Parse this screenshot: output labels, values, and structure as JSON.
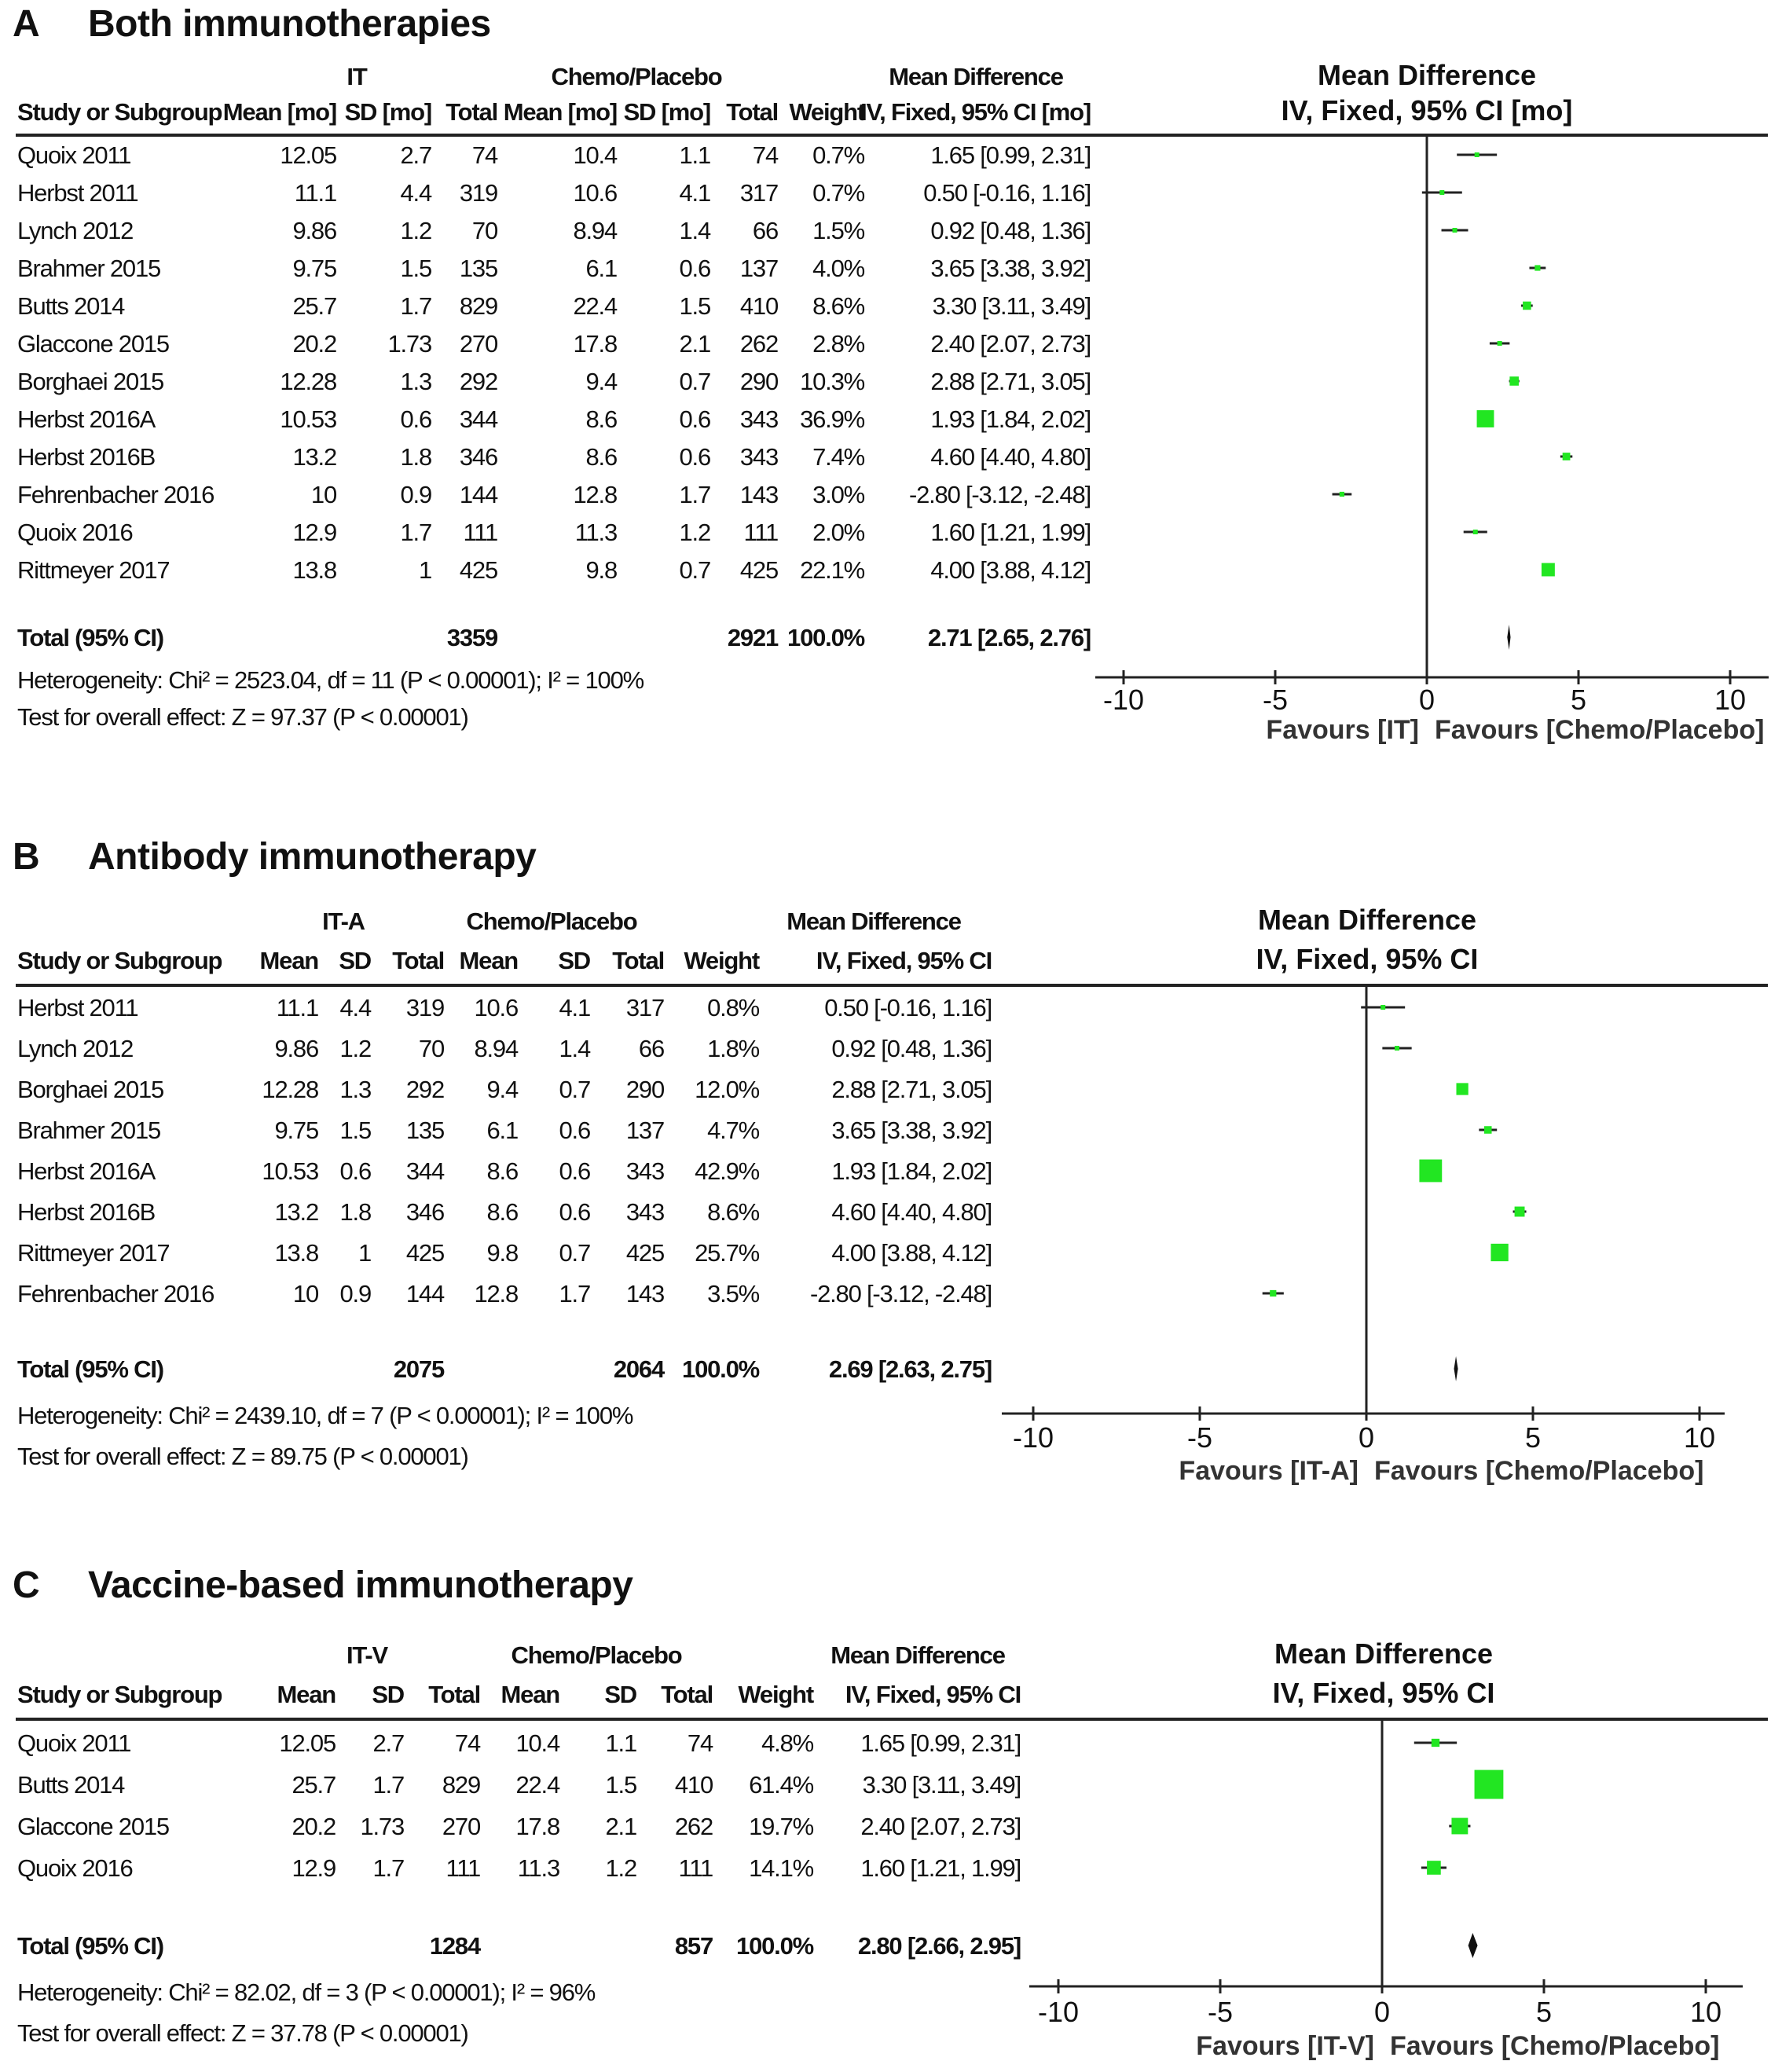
{
  "chart_data": [
    {
      "type": "forest",
      "letter": "A",
      "title": "Both immunotherapies",
      "group1": "IT",
      "group2": "Chemo/Placebo",
      "md_group": "Mean Difference",
      "columns": [
        "Study or Subgroup",
        "Mean [mo]",
        "SD [mo]",
        "Total",
        "Mean [mo]",
        "SD [mo]",
        "Total",
        "Weight",
        "IV, Fixed, 95% CI [mo]"
      ],
      "plot_header": [
        "Mean Difference",
        "IV, Fixed, 95% CI [mo]"
      ],
      "rows": [
        {
          "study": "Quoix 2011",
          "m1": "12.05",
          "sd1": "2.7",
          "n1": "74",
          "m2": "10.4",
          "sd2": "1.1",
          "n2": "74",
          "weight": "0.7%",
          "ci": "1.65 [0.99, 2.31]",
          "md": 1.65,
          "lo": 0.99,
          "hi": 2.31,
          "w": 0.7
        },
        {
          "study": "Herbst 2011",
          "m1": "11.1",
          "sd1": "4.4",
          "n1": "319",
          "m2": "10.6",
          "sd2": "4.1",
          "n2": "317",
          "weight": "0.7%",
          "ci": "0.50 [-0.16, 1.16]",
          "md": 0.5,
          "lo": -0.16,
          "hi": 1.16,
          "w": 0.7
        },
        {
          "study": "Lynch 2012",
          "m1": "9.86",
          "sd1": "1.2",
          "n1": "70",
          "m2": "8.94",
          "sd2": "1.4",
          "n2": "66",
          "weight": "1.5%",
          "ci": "0.92 [0.48, 1.36]",
          "md": 0.92,
          "lo": 0.48,
          "hi": 1.36,
          "w": 1.5
        },
        {
          "study": "Brahmer 2015",
          "m1": "9.75",
          "sd1": "1.5",
          "n1": "135",
          "m2": "6.1",
          "sd2": "0.6",
          "n2": "137",
          "weight": "4.0%",
          "ci": "3.65 [3.38, 3.92]",
          "md": 3.65,
          "lo": 3.38,
          "hi": 3.92,
          "w": 4.0
        },
        {
          "study": "Butts  2014",
          "m1": "25.7",
          "sd1": "1.7",
          "n1": "829",
          "m2": "22.4",
          "sd2": "1.5",
          "n2": "410",
          "weight": "8.6%",
          "ci": "3.30 [3.11, 3.49]",
          "md": 3.3,
          "lo": 3.11,
          "hi": 3.49,
          "w": 8.6
        },
        {
          "study": "Glaccone 2015",
          "m1": "20.2",
          "sd1": "1.73",
          "n1": "270",
          "m2": "17.8",
          "sd2": "2.1",
          "n2": "262",
          "weight": "2.8%",
          "ci": "2.40 [2.07, 2.73]",
          "md": 2.4,
          "lo": 2.07,
          "hi": 2.73,
          "w": 2.8
        },
        {
          "study": "Borghaei 2015",
          "m1": "12.28",
          "sd1": "1.3",
          "n1": "292",
          "m2": "9.4",
          "sd2": "0.7",
          "n2": "290",
          "weight": "10.3%",
          "ci": "2.88 [2.71, 3.05]",
          "md": 2.88,
          "lo": 2.71,
          "hi": 3.05,
          "w": 10.3
        },
        {
          "study": "Herbst 2016A",
          "m1": "10.53",
          "sd1": "0.6",
          "n1": "344",
          "m2": "8.6",
          "sd2": "0.6",
          "n2": "343",
          "weight": "36.9%",
          "ci": "1.93 [1.84, 2.02]",
          "md": 1.93,
          "lo": 1.84,
          "hi": 2.02,
          "w": 36.9
        },
        {
          "study": "Herbst 2016B",
          "m1": "13.2",
          "sd1": "1.8",
          "n1": "346",
          "m2": "8.6",
          "sd2": "0.6",
          "n2": "343",
          "weight": "7.4%",
          "ci": "4.60 [4.40, 4.80]",
          "md": 4.6,
          "lo": 4.4,
          "hi": 4.8,
          "w": 7.4
        },
        {
          "study": "Fehrenbacher 2016",
          "m1": "10",
          "sd1": "0.9",
          "n1": "144",
          "m2": "12.8",
          "sd2": "1.7",
          "n2": "143",
          "weight": "3.0%",
          "ci": "-2.80 [-3.12, -2.48]",
          "md": -2.8,
          "lo": -3.12,
          "hi": -2.48,
          "w": 3.0
        },
        {
          "study": "Quoix 2016",
          "m1": "12.9",
          "sd1": "1.7",
          "n1": "111",
          "m2": "11.3",
          "sd2": "1.2",
          "n2": "111",
          "weight": "2.0%",
          "ci": "1.60 [1.21, 1.99]",
          "md": 1.6,
          "lo": 1.21,
          "hi": 1.99,
          "w": 2.0
        },
        {
          "study": "Rittmeyer  2017",
          "m1": "13.8",
          "sd1": "1",
          "n1": "425",
          "m2": "9.8",
          "sd2": "0.7",
          "n2": "425",
          "weight": "22.1%",
          "ci": "4.00 [3.88, 4.12]",
          "md": 4.0,
          "lo": 3.88,
          "hi": 4.12,
          "w": 22.1
        }
      ],
      "total": {
        "label": "Total (95% CI)",
        "n1": "3359",
        "n2": "2921",
        "weight": "100.0%",
        "ci": "2.71 [2.65, 2.76]",
        "md": 2.71,
        "lo": 2.65,
        "hi": 2.76
      },
      "heterogeneity": "Heterogeneity: Chi² = 2523.04, df = 11 (P < 0.00001); I² = 100%",
      "overall": "Test for overall effect: Z = 97.37 (P < 0.00001)",
      "xticks": [
        -10,
        -5,
        0,
        5,
        10
      ],
      "xlim": [
        -10,
        10
      ],
      "favours_left": "Favours [IT]",
      "favours_right": "Favours [Chemo/Placebo]"
    },
    {
      "type": "forest",
      "letter": "B",
      "title": "Antibody immunotherapy",
      "group1": "IT-A",
      "group2": "Chemo/Placebo",
      "md_group": "Mean Difference",
      "columns": [
        "Study or Subgroup",
        "Mean",
        "SD",
        "Total",
        "Mean",
        "SD",
        "Total",
        "Weight",
        "IV, Fixed, 95% CI"
      ],
      "plot_header": [
        "Mean Difference",
        "IV, Fixed, 95% CI"
      ],
      "rows": [
        {
          "study": "Herbst 2011",
          "m1": "11.1",
          "sd1": "4.4",
          "n1": "319",
          "m2": "10.6",
          "sd2": "4.1",
          "n2": "317",
          "weight": "0.8%",
          "ci": "0.50 [-0.16, 1.16]",
          "md": 0.5,
          "lo": -0.16,
          "hi": 1.16,
          "w": 0.8
        },
        {
          "study": "Lynch 2012",
          "m1": "9.86",
          "sd1": "1.2",
          "n1": "70",
          "m2": "8.94",
          "sd2": "1.4",
          "n2": "66",
          "weight": "1.8%",
          "ci": "0.92 [0.48, 1.36]",
          "md": 0.92,
          "lo": 0.48,
          "hi": 1.36,
          "w": 1.8
        },
        {
          "study": "Borghaei 2015",
          "m1": "12.28",
          "sd1": "1.3",
          "n1": "292",
          "m2": "9.4",
          "sd2": "0.7",
          "n2": "290",
          "weight": "12.0%",
          "ci": "2.88 [2.71, 3.05]",
          "md": 2.88,
          "lo": 2.71,
          "hi": 3.05,
          "w": 12.0
        },
        {
          "study": "Brahmer 2015",
          "m1": "9.75",
          "sd1": "1.5",
          "n1": "135",
          "m2": "6.1",
          "sd2": "0.6",
          "n2": "137",
          "weight": "4.7%",
          "ci": "3.65 [3.38, 3.92]",
          "md": 3.65,
          "lo": 3.38,
          "hi": 3.92,
          "w": 4.7
        },
        {
          "study": "Herbst 2016A",
          "m1": "10.53",
          "sd1": "0.6",
          "n1": "344",
          "m2": "8.6",
          "sd2": "0.6",
          "n2": "343",
          "weight": "42.9%",
          "ci": "1.93 [1.84, 2.02]",
          "md": 1.93,
          "lo": 1.84,
          "hi": 2.02,
          "w": 42.9
        },
        {
          "study": "Herbst 2016B",
          "m1": "13.2",
          "sd1": "1.8",
          "n1": "346",
          "m2": "8.6",
          "sd2": "0.6",
          "n2": "343",
          "weight": "8.6%",
          "ci": "4.60 [4.40, 4.80]",
          "md": 4.6,
          "lo": 4.4,
          "hi": 4.8,
          "w": 8.6
        },
        {
          "study": "Rittmeyer  2017",
          "m1": "13.8",
          "sd1": "1",
          "n1": "425",
          "m2": "9.8",
          "sd2": "0.7",
          "n2": "425",
          "weight": "25.7%",
          "ci": "4.00 [3.88, 4.12]",
          "md": 4.0,
          "lo": 3.88,
          "hi": 4.12,
          "w": 25.7
        },
        {
          "study": "Fehrenbacher 2016",
          "m1": "10",
          "sd1": "0.9",
          "n1": "144",
          "m2": "12.8",
          "sd2": "1.7",
          "n2": "143",
          "weight": "3.5%",
          "ci": "-2.80 [-3.12, -2.48]",
          "md": -2.8,
          "lo": -3.12,
          "hi": -2.48,
          "w": 3.5
        }
      ],
      "total": {
        "label": "Total (95% CI)",
        "n1": "2075",
        "n2": "2064",
        "weight": "100.0%",
        "ci": "2.69 [2.63, 2.75]",
        "md": 2.69,
        "lo": 2.63,
        "hi": 2.75
      },
      "heterogeneity": "Heterogeneity: Chi² = 2439.10, df = 7 (P < 0.00001); I² = 100%",
      "overall": "Test for overall effect: Z = 89.75 (P < 0.00001)",
      "xticks": [
        -10,
        -5,
        0,
        5,
        10
      ],
      "xlim": [
        -10,
        10
      ],
      "favours_left": "Favours [IT-A]",
      "favours_right": "Favours [Chemo/Placebo]"
    },
    {
      "type": "forest",
      "letter": "C",
      "title": "Vaccine-based immunotherapy",
      "group1": "IT-V",
      "group2": "Chemo/Placebo",
      "md_group": "Mean Difference",
      "columns": [
        "Study or Subgroup",
        "Mean",
        "SD",
        "Total",
        "Mean",
        "SD",
        "Total",
        "Weight",
        "IV, Fixed, 95% CI"
      ],
      "plot_header": [
        "Mean Difference",
        "IV, Fixed, 95% CI"
      ],
      "rows": [
        {
          "study": "Quoix 2011",
          "m1": "12.05",
          "sd1": "2.7",
          "n1": "74",
          "m2": "10.4",
          "sd2": "1.1",
          "n2": "74",
          "weight": "4.8%",
          "ci": "1.65 [0.99, 2.31]",
          "md": 1.65,
          "lo": 0.99,
          "hi": 2.31,
          "w": 4.8
        },
        {
          "study": "Butts  2014",
          "m1": "25.7",
          "sd1": "1.7",
          "n1": "829",
          "m2": "22.4",
          "sd2": "1.5",
          "n2": "410",
          "weight": "61.4%",
          "ci": "3.30 [3.11, 3.49]",
          "md": 3.3,
          "lo": 3.11,
          "hi": 3.49,
          "w": 61.4
        },
        {
          "study": "Glaccone 2015",
          "m1": "20.2",
          "sd1": "1.73",
          "n1": "270",
          "m2": "17.8",
          "sd2": "2.1",
          "n2": "262",
          "weight": "19.7%",
          "ci": "2.40 [2.07, 2.73]",
          "md": 2.4,
          "lo": 2.07,
          "hi": 2.73,
          "w": 19.7
        },
        {
          "study": "Quoix 2016",
          "m1": "12.9",
          "sd1": "1.7",
          "n1": "111",
          "m2": "11.3",
          "sd2": "1.2",
          "n2": "111",
          "weight": "14.1%",
          "ci": "1.60 [1.21, 1.99]",
          "md": 1.6,
          "lo": 1.21,
          "hi": 1.99,
          "w": 14.1
        }
      ],
      "total": {
        "label": "Total (95% CI)",
        "n1": "1284",
        "n2": "857",
        "weight": "100.0%",
        "ci": "2.80 [2.66, 2.95]",
        "md": 2.8,
        "lo": 2.66,
        "hi": 2.95
      },
      "heterogeneity": "Heterogeneity: Chi² = 82.02, df = 3 (P < 0.00001); I² = 96%",
      "overall": "Test for overall effect: Z = 37.78 (P < 0.00001)",
      "xticks": [
        -10,
        -5,
        0,
        5,
        10
      ],
      "xlim": [
        -10,
        10
      ],
      "favours_left": "Favours [IT-V]",
      "favours_right": "Favours [Chemo/Placebo]"
    }
  ],
  "colors": {
    "marker": "#22e622",
    "line": "#222222"
  }
}
